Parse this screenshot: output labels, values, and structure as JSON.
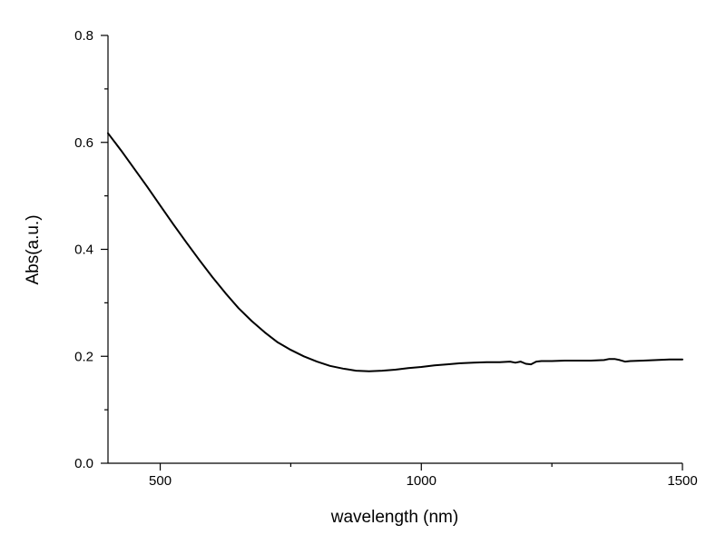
{
  "chart_data": {
    "type": "line",
    "xlabel": "wavelength (nm)",
    "ylabel": "Abs(a.u.)",
    "xlim": [
      400,
      1500
    ],
    "ylim": [
      0.0,
      0.8
    ],
    "x_ticks": [
      {
        "value": 500,
        "label": "500"
      },
      {
        "value": 1000,
        "label": "1000"
      },
      {
        "value": 1500,
        "label": "1500"
      }
    ],
    "x_minor_ticks": [
      750,
      1250
    ],
    "y_ticks": [
      {
        "value": 0.0,
        "label": "0.0"
      },
      {
        "value": 0.2,
        "label": "0.2"
      },
      {
        "value": 0.4,
        "label": "0.4"
      },
      {
        "value": 0.6,
        "label": "0.6"
      },
      {
        "value": 0.8,
        "label": "0.8"
      }
    ],
    "y_minor_ticks": [
      0.1,
      0.3,
      0.5,
      0.7
    ],
    "grid": false,
    "line_color": "#000000",
    "series": [
      {
        "x": [
          400,
          425,
          450,
          475,
          500,
          525,
          550,
          575,
          600,
          625,
          650,
          675,
          700,
          725,
          750,
          775,
          800,
          825,
          850,
          875,
          900,
          925,
          950,
          975,
          1000,
          1025,
          1050,
          1075,
          1100,
          1125,
          1150,
          1170,
          1180,
          1190,
          1200,
          1210,
          1220,
          1230,
          1250,
          1275,
          1300,
          1325,
          1350,
          1360,
          1370,
          1380,
          1390,
          1400,
          1425,
          1450,
          1475,
          1500
        ],
        "y": [
          0.617,
          0.585,
          0.551,
          0.517,
          0.482,
          0.447,
          0.413,
          0.38,
          0.348,
          0.318,
          0.29,
          0.266,
          0.245,
          0.226,
          0.212,
          0.2,
          0.19,
          0.182,
          0.177,
          0.173,
          0.172,
          0.173,
          0.175,
          0.178,
          0.18,
          0.183,
          0.185,
          0.187,
          0.188,
          0.189,
          0.189,
          0.19,
          0.188,
          0.19,
          0.186,
          0.185,
          0.19,
          0.191,
          0.191,
          0.192,
          0.192,
          0.192,
          0.193,
          0.195,
          0.195,
          0.193,
          0.19,
          0.191,
          0.192,
          0.193,
          0.194,
          0.194
        ]
      }
    ]
  }
}
